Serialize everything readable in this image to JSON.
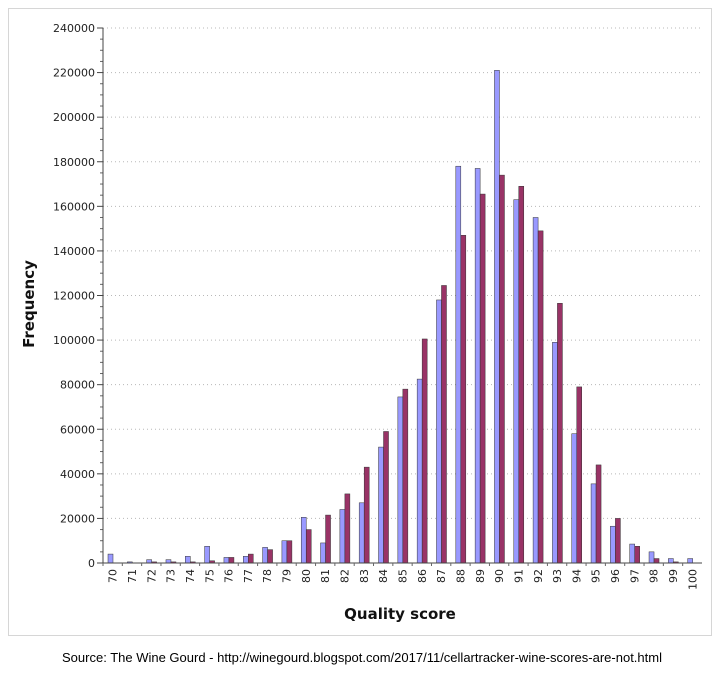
{
  "colors": {
    "series_a": "#9999ff",
    "series_b": "#993366",
    "grid": "#b8b8b8"
  },
  "source_note": "Source: The Wine Gourd - http://winegourd.blogspot.com/2017/11/cellartracker-wine-scores-are-not.html",
  "chart_data": {
    "type": "bar",
    "title": "",
    "xlabel": "Quality score",
    "ylabel": "Frequency",
    "ylim": [
      0,
      240000
    ],
    "yticks": [
      0,
      20000,
      40000,
      60000,
      80000,
      100000,
      120000,
      140000,
      160000,
      180000,
      200000,
      220000,
      240000
    ],
    "grid": "horizontal dotted",
    "legend": "none",
    "categories": [
      "70",
      "71",
      "72",
      "73",
      "74",
      "75",
      "76",
      "77",
      "78",
      "79",
      "80",
      "81",
      "82",
      "83",
      "84",
      "85",
      "86",
      "87",
      "88",
      "89",
      "90",
      "91",
      "92",
      "93",
      "94",
      "95",
      "96",
      "97",
      "98",
      "99",
      "100"
    ],
    "series": [
      {
        "values": [
          4000,
          500,
          1500,
          1500,
          3000,
          7500,
          2500,
          3000,
          7000,
          10000,
          20500,
          9000,
          24000,
          27000,
          52000,
          74500,
          82500,
          118000,
          178000,
          177000,
          221000,
          163000,
          155000,
          99000,
          58000,
          35500,
          16500,
          8500,
          5000,
          2000,
          2000
        ]
      },
      {
        "values": [
          0,
          0,
          500,
          500,
          500,
          1000,
          2500,
          4000,
          6000,
          10000,
          15000,
          21500,
          31000,
          43000,
          59000,
          78000,
          100500,
          124500,
          147000,
          165500,
          174000,
          169000,
          149000,
          116500,
          79000,
          44000,
          20000,
          7500,
          2000,
          500,
          0
        ]
      }
    ]
  }
}
